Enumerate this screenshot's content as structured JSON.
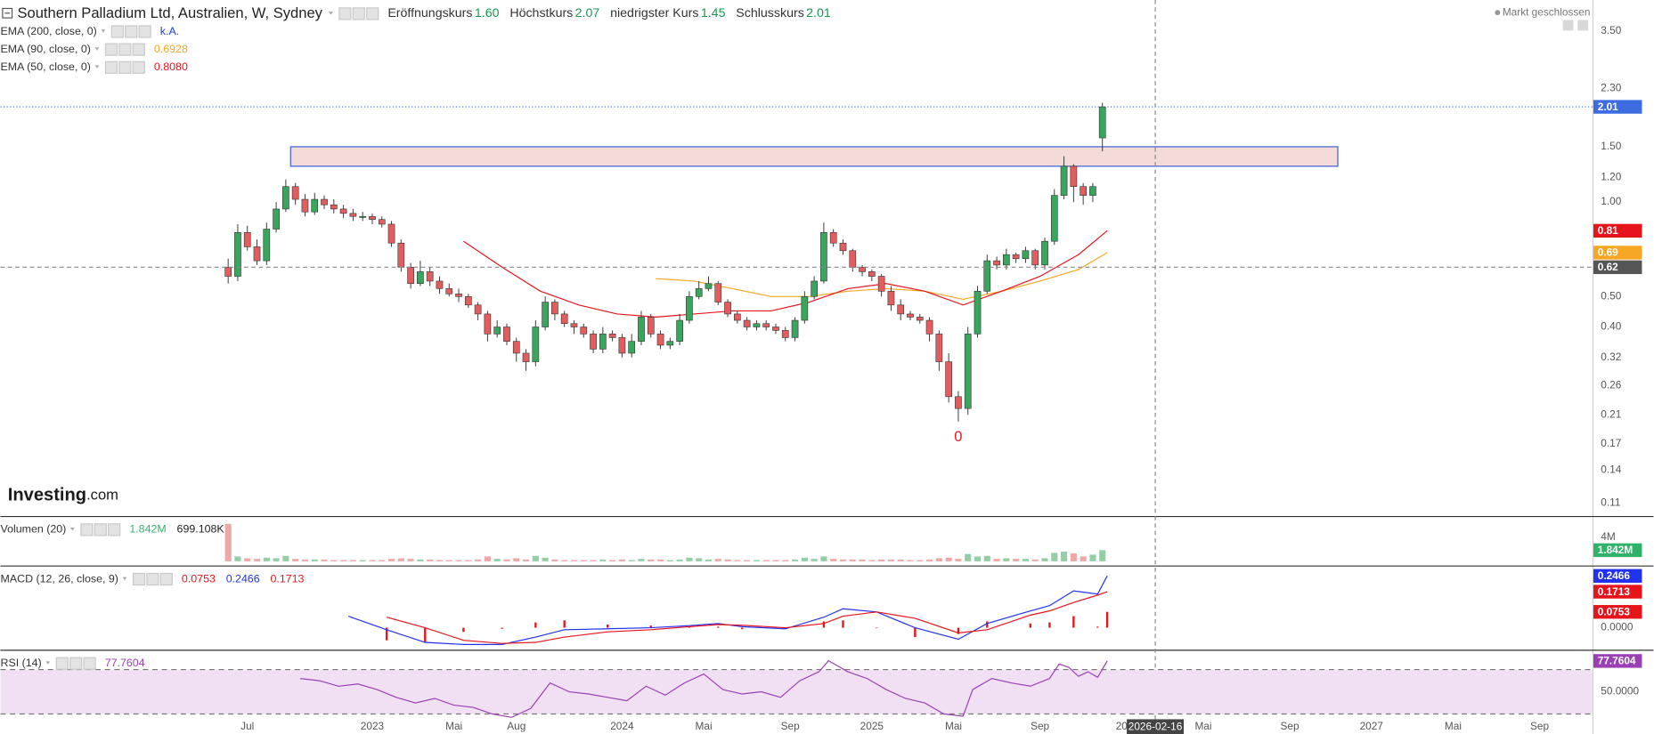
{
  "header": {
    "market_status": "Markt geschlossen",
    "logo": [
      "Investing",
      ".com"
    ]
  },
  "chart_data": [
    {
      "type": "candlestick",
      "title": "Southern Palladium Ltd, Australien, W, Sydney",
      "ohlc_legend": [
        {
          "name": "Eröffnungskurs",
          "value": "1.60"
        },
        {
          "name": "Höchstkurs",
          "value": "2.07"
        },
        {
          "name": "niedrigster Kurs",
          "value": "1.45"
        },
        {
          "name": "Schlusskurs",
          "value": "2.01"
        }
      ],
      "log_scale": true,
      "xlim": [
        -51.4,
        280
      ],
      "ylim": [
        0.1,
        4.4
      ],
      "xticks": [
        {
          "value": 0,
          "label": "Jul"
        },
        {
          "value": 26,
          "label": "2023"
        },
        {
          "value": 43,
          "label": "Mai"
        },
        {
          "value": 56,
          "label": "Aug"
        },
        {
          "value": 78,
          "label": "2024"
        },
        {
          "value": 95,
          "label": "Mai"
        },
        {
          "value": 113,
          "label": "Sep"
        },
        {
          "value": 130,
          "label": "2025"
        },
        {
          "value": 147,
          "label": "Mai"
        },
        {
          "value": 165,
          "label": "Sep"
        },
        {
          "value": 182,
          "label": "20"
        },
        {
          "value": 199,
          "label": "Mai"
        },
        {
          "value": 217,
          "label": "Sep"
        },
        {
          "value": 234,
          "label": "2027"
        },
        {
          "value": 251,
          "label": "Mai"
        },
        {
          "value": 269,
          "label": "Sep"
        }
      ],
      "yticks": [
        {
          "value": 3.5,
          "label": "3.50"
        },
        {
          "value": 2.3,
          "label": "2.30"
        },
        {
          "value": 1.5,
          "label": "1.50"
        },
        {
          "value": 1.2,
          "label": "1.20"
        },
        {
          "value": 1,
          "label": "1.00"
        },
        {
          "value": 0.5,
          "label": "0.50"
        },
        {
          "value": 0.4,
          "label": "0.40"
        },
        0.32,
        0.26,
        0.21,
        0.17,
        0.14,
        0.11
      ],
      "x": [
        -4,
        -2,
        0,
        2,
        4,
        6,
        8,
        10,
        12,
        14,
        16,
        18,
        20,
        22,
        24,
        26,
        28,
        30,
        32,
        34,
        36,
        38,
        40,
        42,
        44,
        46,
        48,
        50,
        52,
        54,
        56,
        58,
        60,
        62,
        64,
        66,
        68,
        70,
        72,
        74,
        76,
        78,
        80,
        82,
        84,
        86,
        88,
        90,
        92,
        94,
        96,
        98,
        100,
        102,
        104,
        106,
        108,
        110,
        112,
        114,
        116,
        118,
        120,
        122,
        124,
        126,
        128,
        130,
        132,
        134,
        136,
        138,
        140,
        142,
        144,
        146,
        148,
        150,
        152,
        154,
        156,
        158,
        160,
        162,
        164,
        166,
        168,
        170,
        172,
        174,
        176,
        178
      ],
      "open": [
        0.62,
        0.58,
        0.8,
        0.72,
        0.65,
        0.82,
        0.95,
        1.12,
        1.02,
        0.93,
        1.02,
        0.98,
        0.95,
        0.92,
        0.9,
        0.9,
        0.88,
        0.85,
        0.74,
        0.62,
        0.55,
        0.6,
        0.56,
        0.53,
        0.51,
        0.5,
        0.47,
        0.44,
        0.38,
        0.4,
        0.36,
        0.33,
        0.31,
        0.4,
        0.48,
        0.44,
        0.41,
        0.4,
        0.38,
        0.34,
        0.38,
        0.37,
        0.33,
        0.36,
        0.43,
        0.38,
        0.35,
        0.36,
        0.42,
        0.5,
        0.53,
        0.55,
        0.48,
        0.44,
        0.42,
        0.4,
        0.41,
        0.4,
        0.39,
        0.37,
        0.42,
        0.5,
        0.56,
        0.8,
        0.74,
        0.7,
        0.62,
        0.6,
        0.58,
        0.52,
        0.47,
        0.44,
        0.43,
        0.42,
        0.38,
        0.31,
        0.24,
        0.22,
        0.38,
        0.52,
        0.65,
        0.63,
        0.68,
        0.66,
        0.7,
        0.63,
        0.75,
        1.05,
        1.3,
        1.12,
        1.05,
        1.6
      ],
      "high": [
        0.66,
        0.85,
        0.84,
        0.76,
        0.86,
        1.0,
        1.18,
        1.15,
        1.06,
        1.07,
        1.05,
        1.02,
        0.98,
        0.95,
        0.93,
        0.92,
        0.9,
        0.87,
        0.76,
        0.64,
        0.65,
        0.62,
        0.58,
        0.55,
        0.53,
        0.51,
        0.48,
        0.45,
        0.42,
        0.41,
        0.37,
        0.34,
        0.42,
        0.5,
        0.49,
        0.45,
        0.42,
        0.41,
        0.39,
        0.4,
        0.39,
        0.38,
        0.38,
        0.45,
        0.44,
        0.39,
        0.37,
        0.44,
        0.52,
        0.56,
        0.58,
        0.56,
        0.49,
        0.45,
        0.43,
        0.42,
        0.42,
        0.41,
        0.4,
        0.43,
        0.52,
        0.58,
        0.86,
        0.82,
        0.76,
        0.71,
        0.63,
        0.61,
        0.59,
        0.54,
        0.49,
        0.45,
        0.44,
        0.43,
        0.39,
        0.33,
        0.25,
        0.4,
        0.54,
        0.68,
        0.67,
        0.71,
        0.69,
        0.72,
        0.71,
        0.77,
        1.1,
        1.4,
        1.32,
        1.15,
        1.15,
        2.07
      ],
      "low": [
        0.55,
        0.56,
        0.7,
        0.63,
        0.63,
        0.8,
        0.93,
        0.98,
        0.9,
        0.91,
        0.95,
        0.92,
        0.89,
        0.87,
        0.87,
        0.85,
        0.83,
        0.72,
        0.6,
        0.53,
        0.54,
        0.54,
        0.51,
        0.5,
        0.48,
        0.46,
        0.42,
        0.36,
        0.37,
        0.35,
        0.31,
        0.29,
        0.3,
        0.39,
        0.42,
        0.4,
        0.38,
        0.37,
        0.33,
        0.33,
        0.36,
        0.32,
        0.32,
        0.35,
        0.37,
        0.34,
        0.34,
        0.35,
        0.41,
        0.49,
        0.52,
        0.47,
        0.43,
        0.41,
        0.39,
        0.39,
        0.39,
        0.38,
        0.36,
        0.36,
        0.41,
        0.49,
        0.55,
        0.72,
        0.68,
        0.6,
        0.58,
        0.56,
        0.5,
        0.45,
        0.42,
        0.42,
        0.41,
        0.36,
        0.29,
        0.23,
        0.2,
        0.21,
        0.37,
        0.51,
        0.61,
        0.61,
        0.64,
        0.64,
        0.61,
        0.61,
        0.73,
        1.02,
        1.0,
        0.98,
        1.0,
        1.45
      ],
      "close": [
        0.58,
        0.8,
        0.72,
        0.65,
        0.82,
        0.95,
        1.12,
        1.02,
        0.93,
        1.02,
        0.98,
        0.95,
        0.92,
        0.9,
        0.9,
        0.88,
        0.85,
        0.74,
        0.62,
        0.55,
        0.6,
        0.56,
        0.53,
        0.51,
        0.5,
        0.47,
        0.44,
        0.38,
        0.4,
        0.36,
        0.33,
        0.31,
        0.4,
        0.48,
        0.44,
        0.41,
        0.4,
        0.38,
        0.34,
        0.38,
        0.37,
        0.33,
        0.36,
        0.43,
        0.38,
        0.35,
        0.36,
        0.42,
        0.5,
        0.53,
        0.55,
        0.48,
        0.44,
        0.42,
        0.4,
        0.41,
        0.4,
        0.39,
        0.37,
        0.42,
        0.5,
        0.56,
        0.8,
        0.74,
        0.7,
        0.62,
        0.6,
        0.58,
        0.52,
        0.47,
        0.44,
        0.43,
        0.42,
        0.38,
        0.31,
        0.24,
        0.22,
        0.38,
        0.52,
        0.65,
        0.63,
        0.68,
        0.66,
        0.7,
        0.63,
        0.75,
        1.05,
        1.3,
        1.12,
        1.05,
        1.12,
        2.01
      ],
      "up_color": "#3aa55c",
      "down_color": "#e25d5d",
      "last_color": "#3d6be0",
      "series": [
        {
          "name": "EMA (200, close, 0)",
          "value_label": "k.A.",
          "color": "#1f3fd8"
        },
        {
          "name": "EMA (90, close, 0)",
          "value_label": "0.6928",
          "color": "#f5a623",
          "x": [
            85,
            93,
            101,
            109,
            117,
            125,
            133,
            141,
            149,
            157,
            165,
            173,
            179
          ],
          "values": [
            0.57,
            0.56,
            0.53,
            0.5,
            0.5,
            0.52,
            0.53,
            0.52,
            0.49,
            0.52,
            0.56,
            0.61,
            0.69
          ]
        },
        {
          "name": "EMA (50, close, 0)",
          "value_label": "0.8080",
          "color": "#e8141c",
          "x": [
            45,
            53,
            61,
            69,
            77,
            85,
            93,
            101,
            109,
            117,
            125,
            133,
            141,
            149,
            157,
            165,
            173,
            179
          ],
          "values": [
            0.75,
            0.62,
            0.52,
            0.47,
            0.44,
            0.43,
            0.44,
            0.45,
            0.45,
            0.48,
            0.53,
            0.55,
            0.52,
            0.47,
            0.52,
            0.58,
            0.68,
            0.81
          ]
        }
      ],
      "zone": {
        "x": [
          9,
          227
        ],
        "y": [
          1.3,
          1.5
        ]
      },
      "annotation": {
        "text": "0",
        "x": 148,
        "y": 0.178
      },
      "crosshair": {
        "x": 189,
        "x_label": "2026-02-16",
        "y": 0.62
      }
    },
    {
      "type": "bar",
      "title": "Volumen (20)",
      "ylim": [
        0,
        6.8
      ],
      "yticks": [
        {
          "value": 4,
          "label": "4M"
        }
      ],
      "legend": [
        {
          "value": "1.842M",
          "color": "#2eb36a"
        },
        {
          "value": "699.108K",
          "color": "#222222"
        }
      ],
      "values": [
        6.2,
        0.8,
        0.5,
        0.4,
        0.6,
        0.5,
        0.9,
        0.4,
        0.3,
        0.3,
        0.3,
        0.2,
        0.2,
        0.2,
        0.2,
        0.2,
        0.2,
        0.4,
        0.5,
        0.4,
        0.3,
        0.3,
        0.2,
        0.2,
        0.2,
        0.2,
        0.3,
        0.8,
        0.4,
        0.3,
        0.5,
        0.3,
        0.9,
        0.6,
        0.3,
        0.2,
        0.2,
        0.2,
        0.2,
        0.3,
        0.2,
        0.3,
        0.2,
        0.4,
        0.3,
        0.3,
        0.2,
        0.3,
        0.6,
        0.5,
        0.3,
        0.4,
        0.3,
        0.2,
        0.2,
        0.2,
        0.2,
        0.2,
        0.2,
        0.3,
        0.6,
        0.4,
        0.8,
        0.4,
        0.3,
        0.3,
        0.3,
        0.2,
        0.3,
        0.3,
        0.3,
        0.2,
        0.2,
        0.3,
        0.5,
        0.6,
        0.4,
        1.2,
        0.8,
        0.9,
        0.4,
        0.5,
        0.4,
        0.4,
        0.3,
        0.5,
        1.4,
        1.6,
        1.3,
        0.8,
        1.1,
        1.842
      ]
    },
    {
      "type": "line",
      "title": "MACD (12, 26, close, 9)",
      "ylim": [
        -0.105,
        0.281
      ],
      "yticks": [
        {
          "value": 0,
          "label": "0.0000"
        }
      ],
      "series": [
        {
          "style": "bar",
          "color": "#e8141c",
          "value_label": "0.0753",
          "x": [
            29,
            37,
            45,
            53,
            60,
            66,
            75,
            84,
            92,
            98,
            103,
            112,
            120,
            124,
            131,
            139,
            148,
            154,
            163,
            167,
            172,
            177,
            179
          ],
          "values": [
            -0.06,
            -0.07,
            -0.02,
            -0.005,
            0.025,
            0.035,
            0.015,
            0.01,
            0.005,
            0.005,
            -0.007,
            -0.005,
            0.03,
            0.035,
            0.0,
            -0.045,
            -0.03,
            0.03,
            0.02,
            0.025,
            0.055,
            0.005,
            0.0753
          ]
        },
        {
          "style": "line",
          "color": "#2233ee",
          "value_label": "0.2466",
          "x": [
            21,
            29,
            37,
            45,
            53,
            60,
            66,
            75,
            84,
            92,
            98,
            103,
            112,
            120,
            124,
            131,
            139,
            148,
            154,
            163,
            167,
            172,
            177,
            179
          ],
          "values": [
            0.055,
            -0.01,
            -0.07,
            -0.08,
            -0.08,
            -0.045,
            -0.01,
            -0.005,
            0.0,
            0.01,
            0.02,
            0.005,
            -0.005,
            0.05,
            0.09,
            0.075,
            0.0,
            -0.055,
            0.02,
            0.08,
            0.105,
            0.175,
            0.16,
            0.2466
          ]
        },
        {
          "style": "line",
          "color": "#e8141c",
          "value_label": "0.1713",
          "x": [
            29,
            37,
            45,
            53,
            60,
            66,
            75,
            84,
            92,
            98,
            103,
            112,
            120,
            124,
            131,
            139,
            148,
            154,
            163,
            167,
            172,
            177,
            179
          ],
          "values": [
            0.05,
            0.0,
            -0.06,
            -0.075,
            -0.07,
            -0.045,
            -0.02,
            -0.01,
            0.005,
            0.015,
            0.012,
            0.0,
            0.02,
            0.055,
            0.075,
            0.045,
            -0.025,
            -0.01,
            0.06,
            0.08,
            0.12,
            0.155,
            0.1713
          ]
        }
      ]
    },
    {
      "type": "line",
      "title": "RSI (14)",
      "ylim": [
        12,
        85
      ],
      "yticks": [
        {
          "value": 50,
          "label": "50.0000"
        }
      ],
      "bands": [
        30,
        70
      ],
      "band_color": "#f1e0f3",
      "series": [
        {
          "style": "line",
          "color": "#9b3fb5",
          "value_label": "77.7604",
          "x": [
            11,
            15,
            19,
            23,
            27,
            31,
            35,
            39,
            43,
            47,
            51,
            55,
            59,
            63,
            67,
            71,
            75,
            79,
            83,
            87,
            91,
            95,
            99,
            103,
            107,
            111,
            115,
            119,
            121,
            125,
            129,
            133,
            137,
            141,
            145,
            149,
            151,
            155,
            159,
            163,
            167,
            169,
            171,
            173,
            175,
            177,
            179
          ],
          "values": [
            62,
            60,
            55,
            57,
            52,
            45,
            40,
            44,
            38,
            36,
            30,
            27,
            35,
            58,
            50,
            48,
            45,
            42,
            55,
            47,
            58,
            66,
            52,
            48,
            50,
            45,
            60,
            68,
            78,
            68,
            62,
            52,
            44,
            40,
            30,
            28,
            52,
            62,
            58,
            55,
            62,
            75,
            72,
            64,
            68,
            63,
            77.7604
          ]
        }
      ]
    }
  ]
}
